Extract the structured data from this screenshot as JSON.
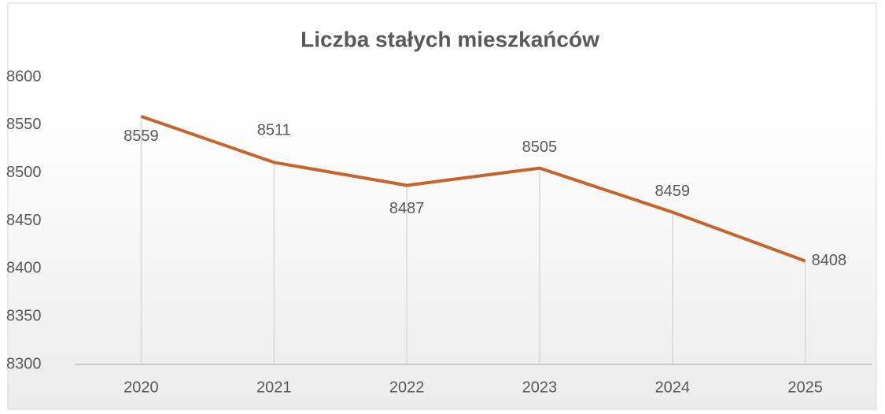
{
  "chart_data": {
    "type": "line",
    "title": "Liczba stałych mieszkańców",
    "categories": [
      "2020",
      "2021",
      "2022",
      "2023",
      "2024",
      "2025"
    ],
    "series": [
      {
        "name": "Liczba stałych mieszkańców",
        "color": "#c5652c",
        "values": [
          8559,
          8511,
          8487,
          8505,
          8459,
          8408
        ]
      }
    ],
    "ylim": [
      8300,
      8600
    ],
    "yticks": [
      8300,
      8350,
      8400,
      8450,
      8500,
      8550,
      8600
    ],
    "drop_lines": true
  }
}
